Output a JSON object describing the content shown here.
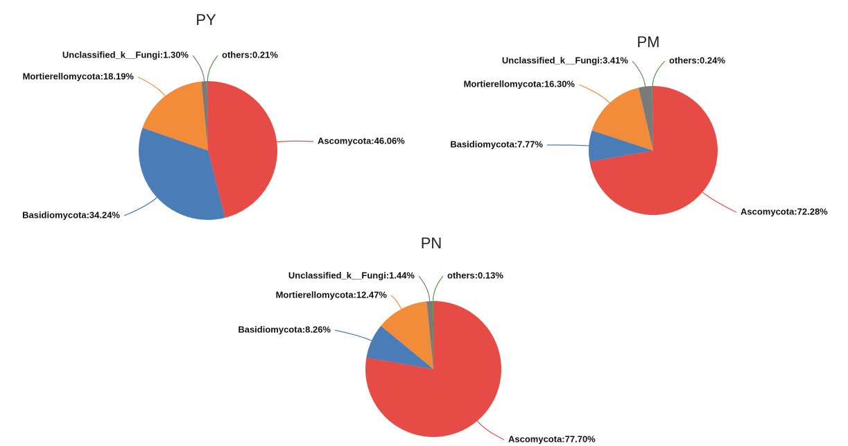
{
  "chart_data": [
    {
      "type": "pie",
      "title": "PY",
      "values": [
        46.06,
        34.24,
        18.19,
        1.3,
        0.21
      ],
      "value_labels": [
        "Ascomycota:46.06%",
        "Basidiomycota:34.24%",
        "Mortierellomycota:18.19%",
        "Unclassified_k__Fungi:1.30%",
        "others:0.21%"
      ],
      "colors": [
        "#e64b45",
        "#4a7db8",
        "#f28c38",
        "#7a7a7a",
        "#4f9a3a"
      ]
    },
    {
      "type": "pie",
      "title": "PM",
      "values": [
        72.28,
        7.77,
        16.3,
        3.41,
        0.24
      ],
      "value_labels": [
        "Ascomycota:72.28%",
        "Basidiomycota:7.77%",
        "Mortierellomycota:16.30%",
        "Unclassified_k__Fungi:3.41%",
        "others:0.24%"
      ],
      "colors": [
        "#e64b45",
        "#4a7db8",
        "#f28c38",
        "#7a7a7a",
        "#4f9a3a"
      ]
    },
    {
      "type": "pie",
      "title": "PN",
      "values": [
        77.7,
        8.26,
        12.47,
        1.44,
        0.13
      ],
      "value_labels": [
        "Ascomycota:77.70%",
        "Basidiomycota:8.26%",
        "Mortierellomycota:12.47%",
        "Unclassified_k__Fungi:1.44%",
        "others:0.13%"
      ],
      "colors": [
        "#e64b45",
        "#4a7db8",
        "#f28c38",
        "#7a7a7a",
        "#4f9a3a"
      ]
    }
  ]
}
